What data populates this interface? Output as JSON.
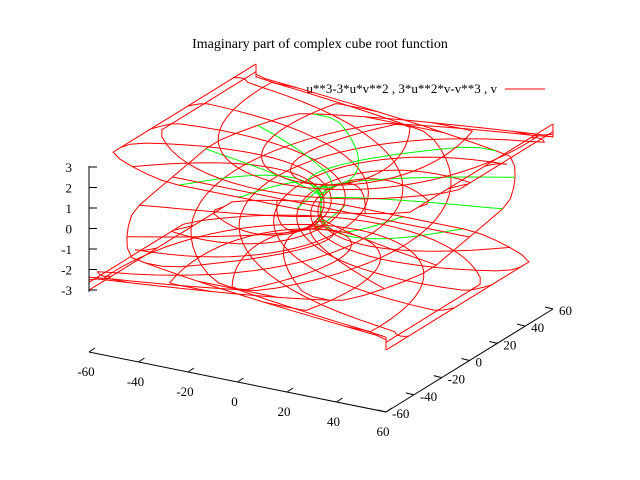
{
  "chart_data": {
    "type": "surface",
    "title": "Imaginary part of complex cube root function",
    "legend": {
      "label": "u**3-3*u*v**2 , 3*u**2*v-v**3 , v",
      "color": "#ff0000",
      "placement": "top-right"
    },
    "xlabel": "",
    "ylabel": "",
    "zlabel": "",
    "x_ticks": [
      "-60",
      "-40",
      "-20",
      "0",
      "20",
      "40",
      "60"
    ],
    "y_ticks": [
      "-60",
      "-40",
      "-20",
      "0",
      "20",
      "40",
      "60"
    ],
    "z_ticks": [
      "-3",
      "-2",
      "-1",
      "0",
      "1",
      "2",
      "3"
    ],
    "xlim": [
      -60,
      60
    ],
    "ylim": [
      -60,
      60
    ],
    "zlim": [
      -3,
      3
    ],
    "surface": {
      "u_range": [
        -4,
        4
      ],
      "v_range": [
        -4,
        4
      ],
      "x_expr": "u**3-3*u*v**2",
      "y_expr": "3*u**2*v-v**3",
      "z_expr": "v",
      "mesh_color": "#ff0000",
      "inner_mesh_color": "#00ff00"
    }
  }
}
